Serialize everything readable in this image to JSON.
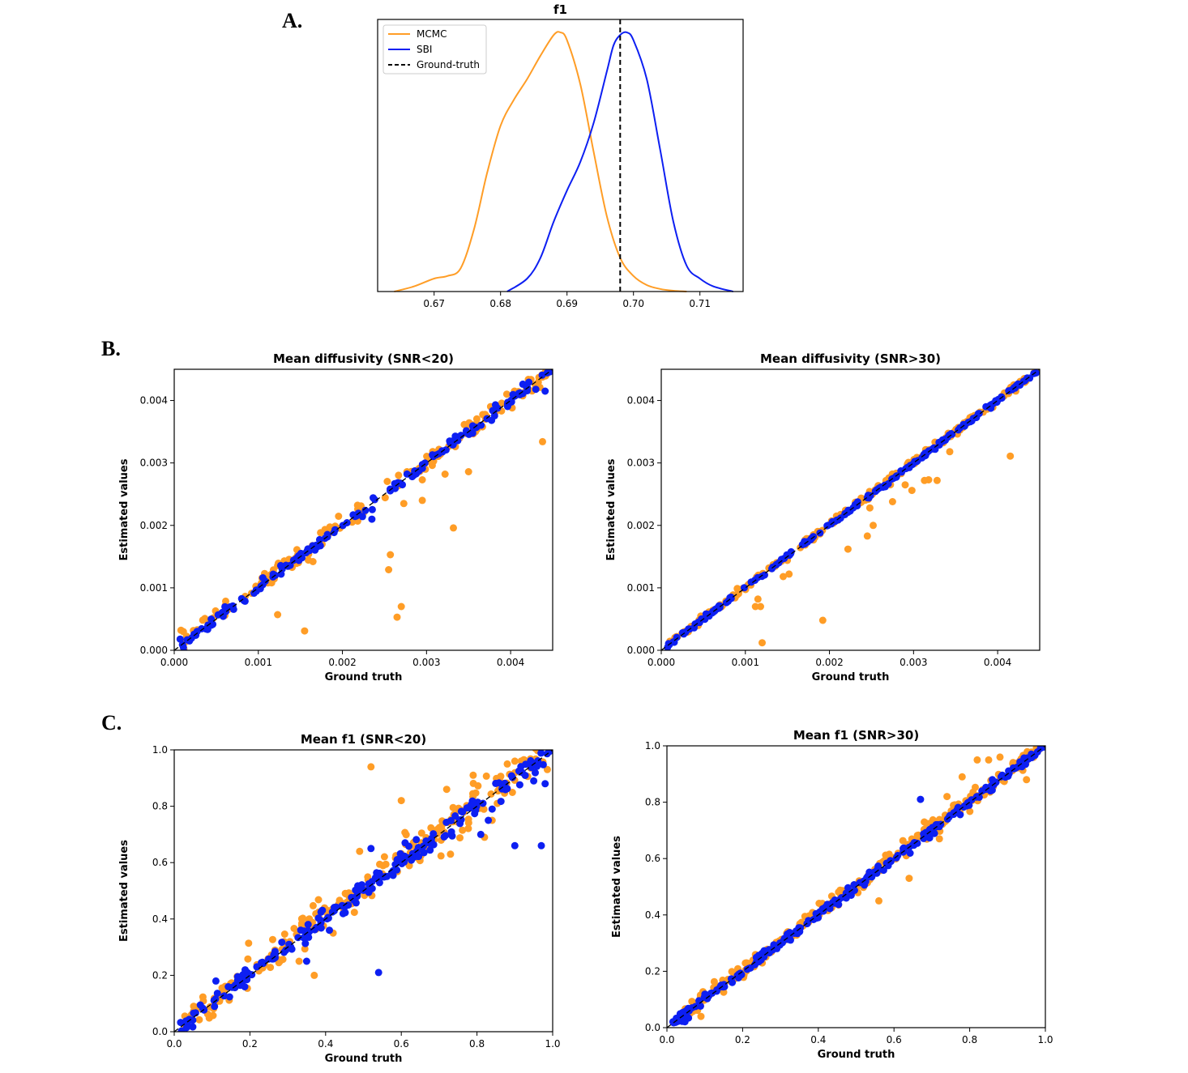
{
  "panels": {
    "a": "A.",
    "b": "B.",
    "c": "C."
  },
  "colors": {
    "mcmc": "#ff9d26",
    "sbi": "#0d1ff2",
    "ground_truth": "#000000"
  },
  "chart_data": [
    {
      "type": "line",
      "title": "f1",
      "xlabel": "",
      "ylabel": "",
      "xlim": [
        0.6615,
        0.7165
      ],
      "xticks": [
        0.67,
        0.68,
        0.69,
        0.7,
        0.71
      ],
      "xtick_labels": [
        "0.67",
        "0.68",
        "0.69",
        "0.70",
        "0.71"
      ],
      "legend": {
        "position": "top-left",
        "entries": [
          "MCMC",
          "SBI",
          "Ground-truth"
        ]
      },
      "ground_truth": 0.698,
      "series": [
        {
          "name": "MCMC",
          "x": [
            0.664,
            0.667,
            0.67,
            0.672,
            0.674,
            0.676,
            0.678,
            0.68,
            0.682,
            0.684,
            0.686,
            0.688,
            0.689,
            0.69,
            0.692,
            0.694,
            0.696,
            0.698,
            0.7,
            0.702,
            0.704,
            0.706,
            0.708
          ],
          "y": [
            0.0,
            0.02,
            0.05,
            0.06,
            0.09,
            0.24,
            0.46,
            0.64,
            0.74,
            0.82,
            0.91,
            0.99,
            1.0,
            0.97,
            0.8,
            0.54,
            0.29,
            0.13,
            0.06,
            0.025,
            0.01,
            0.003,
            0.0
          ]
        },
        {
          "name": "SBI",
          "x": [
            0.681,
            0.684,
            0.686,
            0.688,
            0.69,
            0.692,
            0.694,
            0.696,
            0.697,
            0.698,
            0.699,
            0.7,
            0.702,
            0.704,
            0.706,
            0.708,
            0.71,
            0.712,
            0.715
          ],
          "y": [
            0.0,
            0.05,
            0.13,
            0.27,
            0.39,
            0.5,
            0.65,
            0.85,
            0.95,
            0.99,
            1.0,
            0.97,
            0.82,
            0.55,
            0.27,
            0.1,
            0.05,
            0.02,
            0.0
          ]
        }
      ]
    },
    {
      "type": "scatter",
      "title": "Mean diffusivity (SNR<20)",
      "xlabel": "Ground truth",
      "ylabel": "Estimated values",
      "xlim": [
        0,
        0.0045
      ],
      "ylim": [
        0,
        0.0045
      ],
      "xticks": [
        0,
        0.001,
        0.002,
        0.003,
        0.004
      ],
      "xtick_labels": [
        "0.000",
        "0.001",
        "0.002",
        "0.003",
        "0.004"
      ],
      "yticks": [
        0,
        0.001,
        0.002,
        0.003,
        0.004
      ],
      "ytick_labels": [
        "0.000",
        "0.001",
        "0.002",
        "0.003",
        "0.004"
      ],
      "diagonal": true,
      "scatter_spread": 5e-05,
      "outliers_mcmc": [
        [
          8e-05,
          0.00032
        ],
        [
          0.00123,
          0.00057
        ],
        [
          0.00155,
          0.00031
        ],
        [
          0.00165,
          0.00142
        ],
        [
          0.00255,
          0.00129
        ],
        [
          0.00257,
          0.00153
        ],
        [
          0.00265,
          0.00053
        ],
        [
          0.0027,
          0.0007
        ],
        [
          0.00273,
          0.00235
        ],
        [
          0.00295,
          0.00273
        ],
        [
          0.00295,
          0.0024
        ],
        [
          0.00322,
          0.00282
        ],
        [
          0.00332,
          0.00196
        ],
        [
          0.0035,
          0.00286
        ],
        [
          0.00438,
          0.00334
        ]
      ],
      "outliers_sbi": [
        [
          0.00235,
          0.0021
        ],
        [
          0.0043,
          0.00418
        ],
        [
          0.00441,
          0.00415
        ]
      ]
    },
    {
      "type": "scatter",
      "title": "Mean diffusivity (SNR>30)",
      "xlabel": "Ground truth",
      "ylabel": "Estimated values",
      "xlim": [
        0,
        0.0045
      ],
      "ylim": [
        0,
        0.0045
      ],
      "xticks": [
        0,
        0.001,
        0.002,
        0.003,
        0.004
      ],
      "xtick_labels": [
        "0.000",
        "0.001",
        "0.002",
        "0.003",
        "0.004"
      ],
      "yticks": [
        0,
        0.001,
        0.002,
        0.003,
        0.004
      ],
      "ytick_labels": [
        "0.000",
        "0.001",
        "0.002",
        "0.003",
        "0.004"
      ],
      "diagonal": true,
      "scatter_spread": 2e-05,
      "outliers_mcmc": [
        [
          0.00112,
          0.0007
        ],
        [
          0.00115,
          0.00082
        ],
        [
          0.00118,
          0.0007
        ],
        [
          0.0012,
          0.00012
        ],
        [
          0.00145,
          0.00118
        ],
        [
          0.00152,
          0.00122
        ],
        [
          0.00192,
          0.00048
        ],
        [
          0.00222,
          0.00162
        ],
        [
          0.00245,
          0.00183
        ],
        [
          0.00248,
          0.00228
        ],
        [
          0.00252,
          0.002
        ],
        [
          0.00275,
          0.00238
        ],
        [
          0.0029,
          0.00265
        ],
        [
          0.00298,
          0.00256
        ],
        [
          0.00313,
          0.00272
        ],
        [
          0.00318,
          0.00273
        ],
        [
          0.00328,
          0.00272
        ],
        [
          0.00343,
          0.00318
        ],
        [
          0.00415,
          0.00311
        ]
      ],
      "outliers_sbi": []
    },
    {
      "type": "scatter",
      "title": "Mean f1 (SNR<20)",
      "xlabel": "Ground truth",
      "ylabel": "Estimated values",
      "xlim": [
        0,
        1
      ],
      "ylim": [
        0,
        1
      ],
      "xticks": [
        0,
        0.2,
        0.4,
        0.6,
        0.8,
        1.0
      ],
      "xtick_labels": [
        "0.0",
        "0.2",
        "0.4",
        "0.6",
        "0.8",
        "1.0"
      ],
      "yticks": [
        0,
        0.2,
        0.4,
        0.6,
        0.8,
        1.0
      ],
      "ytick_labels": [
        "0.0",
        "0.2",
        "0.4",
        "0.6",
        "0.8",
        "1.0"
      ],
      "diagonal": true,
      "scatter_spread": 0.022,
      "outliers_mcmc": [
        [
          0.52,
          0.94
        ],
        [
          0.33,
          0.25
        ],
        [
          0.37,
          0.2
        ],
        [
          0.42,
          0.35
        ],
        [
          0.49,
          0.64
        ],
        [
          0.63,
          0.66
        ],
        [
          0.73,
          0.63
        ],
        [
          0.82,
          0.69
        ],
        [
          0.84,
          0.75
        ],
        [
          0.88,
          0.95
        ],
        [
          0.9,
          0.96
        ],
        [
          0.6,
          0.82
        ],
        [
          0.72,
          0.86
        ],
        [
          0.79,
          0.91
        ]
      ],
      "outliers_sbi": [
        [
          0.54,
          0.21
        ],
        [
          0.35,
          0.25
        ],
        [
          0.41,
          0.36
        ],
        [
          0.52,
          0.65
        ],
        [
          0.61,
          0.67
        ],
        [
          0.81,
          0.7
        ],
        [
          0.83,
          0.75
        ],
        [
          0.9,
          0.66
        ],
        [
          0.97,
          0.66
        ],
        [
          0.98,
          0.88
        ],
        [
          0.84,
          0.79
        ],
        [
          0.11,
          0.18
        ],
        [
          0.95,
          0.89
        ]
      ]
    },
    {
      "type": "scatter",
      "title": "Mean f1 (SNR>30)",
      "xlabel": "Ground truth",
      "ylabel": "Estimated values",
      "xlim": [
        0,
        1
      ],
      "ylim": [
        0,
        1
      ],
      "xticks": [
        0,
        0.2,
        0.4,
        0.6,
        0.8,
        1.0
      ],
      "xtick_labels": [
        "0.0",
        "0.2",
        "0.4",
        "0.6",
        "0.8",
        "1.0"
      ],
      "yticks": [
        0,
        0.2,
        0.4,
        0.6,
        0.8,
        1.0
      ],
      "ytick_labels": [
        "0.0",
        "0.2",
        "0.4",
        "0.6",
        "0.8",
        "1.0"
      ],
      "diagonal": true,
      "scatter_spread": 0.01,
      "outliers_mcmc": [
        [
          0.09,
          0.04
        ],
        [
          0.56,
          0.45
        ],
        [
          0.64,
          0.53
        ],
        [
          0.72,
          0.67
        ],
        [
          0.82,
          0.95
        ],
        [
          0.85,
          0.95
        ],
        [
          0.88,
          0.96
        ],
        [
          0.78,
          0.89
        ],
        [
          0.74,
          0.82
        ],
        [
          0.95,
          0.88
        ],
        [
          0.68,
          0.73
        ]
      ],
      "outliers_sbi": [
        [
          0.67,
          0.81
        ],
        [
          0.52,
          0.52
        ],
        [
          0.86,
          0.88
        ],
        [
          0.92,
          0.92
        ]
      ]
    }
  ]
}
